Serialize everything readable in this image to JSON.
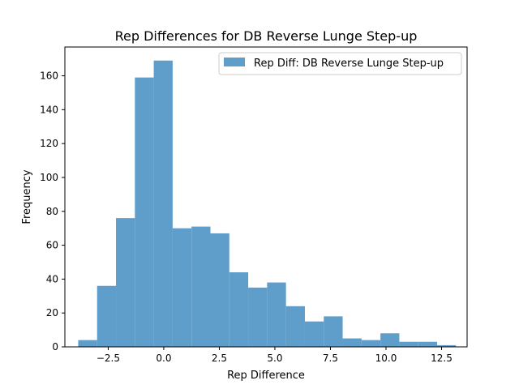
{
  "chart_data": {
    "type": "bar",
    "title": "Rep Differences for DB Reverse Lunge Step-up",
    "xlabel": "Rep Difference",
    "ylabel": "Frequency",
    "xlim": [
      -4.45,
      13.65
    ],
    "ylim": [
      0,
      177
    ],
    "bin_edges": [
      -3.85,
      -3.0,
      -2.15,
      -1.3,
      -0.45,
      0.4,
      1.25,
      2.1,
      2.95,
      3.8,
      4.65,
      5.5,
      6.35,
      7.2,
      8.05,
      8.9,
      9.75,
      10.6,
      11.45,
      12.3,
      13.15
    ],
    "series": [
      {
        "name": "Rep Diff: DB Reverse Lunge Step-up",
        "color": "#5f9ecb",
        "values": [
          4,
          36,
          76,
          159,
          169,
          70,
          71,
          67,
          44,
          35,
          38,
          24,
          15,
          18,
          5,
          4,
          8,
          3,
          3,
          1
        ]
      }
    ],
    "xticks": [
      -2.5,
      0.0,
      2.5,
      5.0,
      7.5,
      10.0,
      12.5
    ],
    "xtick_labels": [
      "−2.5",
      "0.0",
      "2.5",
      "5.0",
      "7.5",
      "10.0",
      "12.5"
    ],
    "yticks": [
      0,
      20,
      40,
      60,
      80,
      100,
      120,
      140,
      160
    ],
    "ytick_labels": [
      "0",
      "20",
      "40",
      "60",
      "80",
      "100",
      "120",
      "140",
      "160"
    ],
    "legend_position": "top-right",
    "grid": false
  }
}
